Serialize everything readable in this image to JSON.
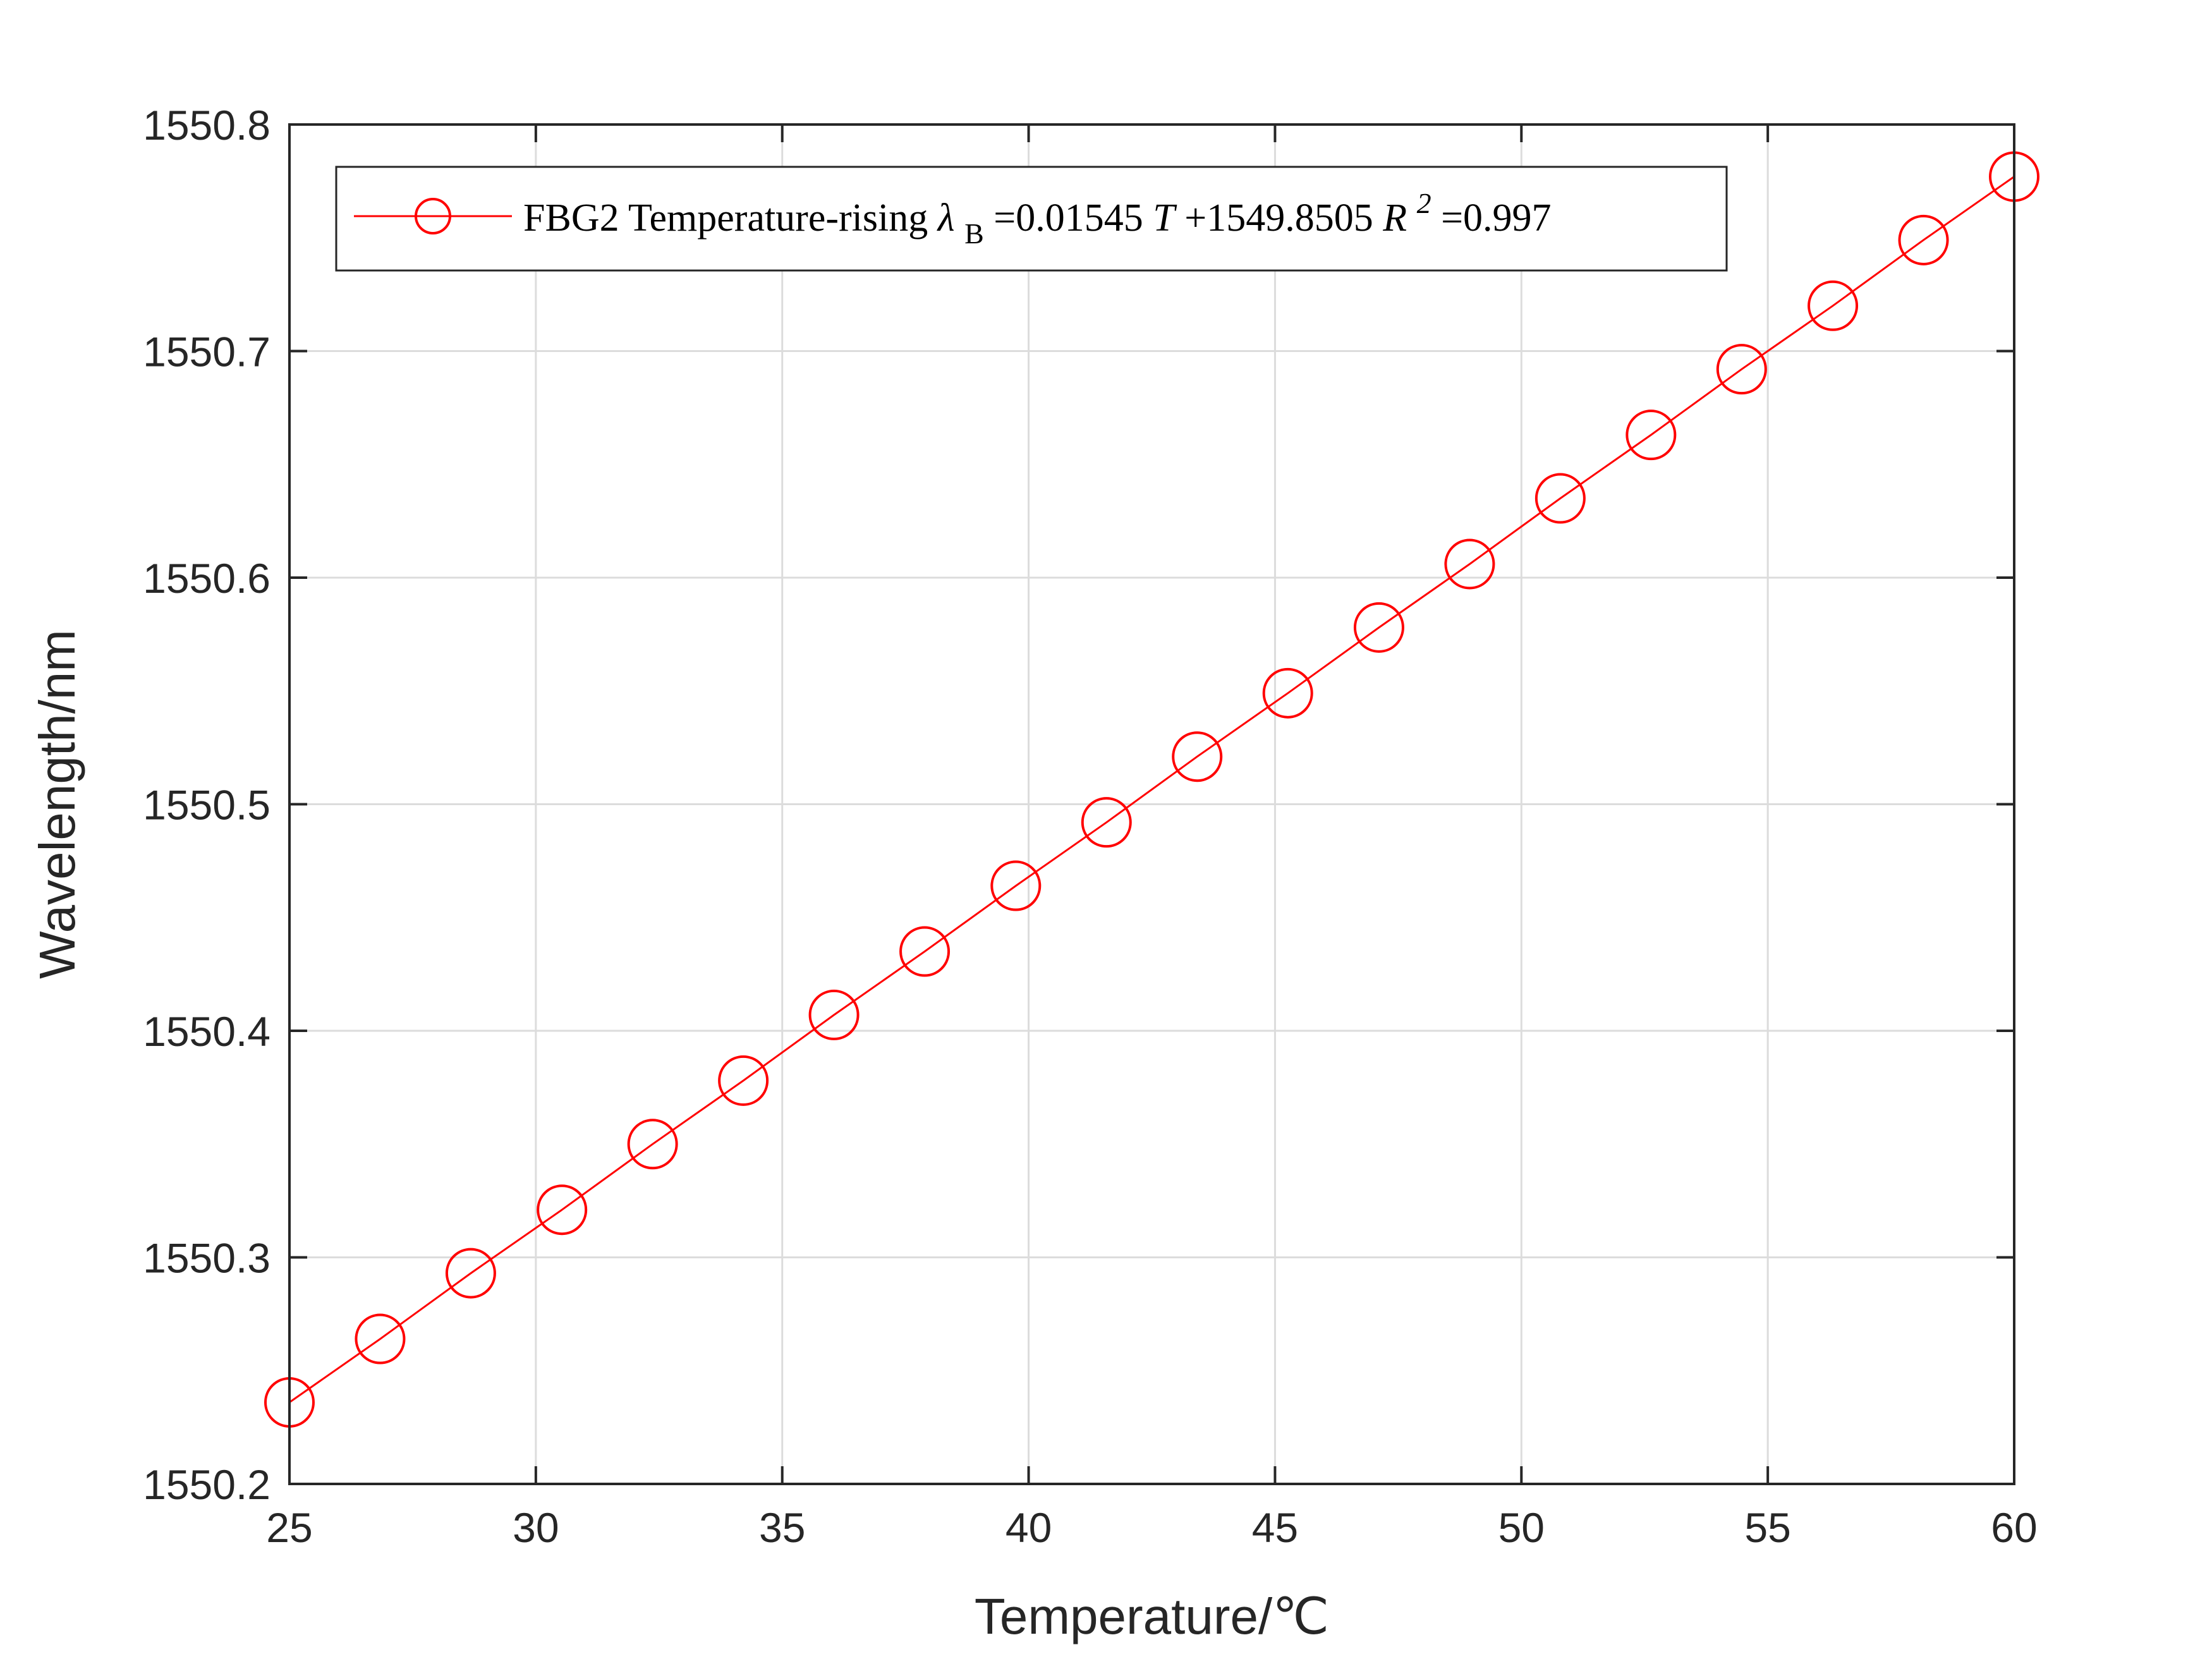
{
  "chart_data": {
    "type": "line",
    "xlabel": "Temperature/℃",
    "ylabel": "Wavelength/nm",
    "xlim": [
      25,
      60
    ],
    "ylim": [
      1550.2,
      1550.8
    ],
    "xticks": [
      "25",
      "30",
      "35",
      "40",
      "45",
      "50",
      "55",
      "60"
    ],
    "yticks": [
      "1550.2",
      "1550.3",
      "1550.4",
      "1550.5",
      "1550.6",
      "1550.7",
      "1550.8"
    ],
    "grid": true,
    "legend_position": "top-left",
    "series": [
      {
        "name": "FBG2 Temperature-rising λB=0.01545T+1549.8505 R2=0.997",
        "color": "#ff0000",
        "marker": "circle-open",
        "x": [
          25.0,
          26.84,
          28.68,
          30.53,
          32.37,
          34.21,
          36.05,
          37.89,
          39.74,
          41.58,
          43.42,
          45.26,
          47.11,
          48.95,
          50.79,
          52.63,
          54.47,
          56.32,
          58.16,
          60.0
        ],
        "y": [
          1550.236,
          1550.264,
          1550.293,
          1550.321,
          1550.35,
          1550.378,
          1550.407,
          1550.435,
          1550.464,
          1550.492,
          1550.521,
          1550.549,
          1550.578,
          1550.606,
          1550.635,
          1550.663,
          1550.692,
          1550.72,
          1550.749,
          1550.777
        ]
      }
    ],
    "legend": {
      "label_prefix": "FBG2 Temperature-rising ",
      "lambda": "λ",
      "lambda_sub": "B",
      "eq_part1": "=0.01545",
      "eq_T": "T",
      "eq_part2": "+1549.8505 ",
      "eq_R": "R",
      "eq_R_sup": "2",
      "eq_part3": "=0.997"
    }
  }
}
